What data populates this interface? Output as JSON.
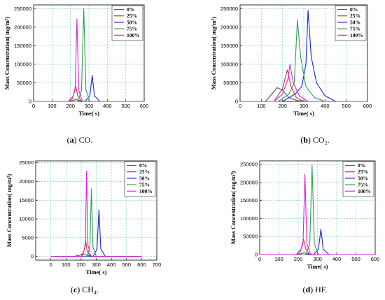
{
  "colors": {
    "0%": "#555555",
    "25%": "#c0392b",
    "50%": "#1f1fd6",
    "75%": "#2f9e4f",
    "100%": "#e01ee0",
    "grid": "#63c5c5"
  },
  "chart_data": [
    {
      "type": "line",
      "caption_label": "(a)",
      "caption_text": "CO.",
      "xlabel": "Time(   s)",
      "ylabel": "Mass Concentration(   mg/m³)",
      "xlim": [
        0,
        600
      ],
      "ylim": [
        0,
        260000
      ],
      "xticks": [
        0,
        100,
        200,
        300,
        400,
        500,
        600
      ],
      "yticks": [
        0,
        50000,
        100000,
        150000,
        200000,
        250000
      ],
      "legend": "top-right",
      "grid": true,
      "series": [
        {
          "name": "0%",
          "x": [
            0,
            180,
            210,
            230,
            250,
            280,
            600
          ],
          "y": [
            0,
            0,
            2000,
            5000,
            2000,
            0,
            0
          ]
        },
        {
          "name": "25%",
          "x": [
            0,
            190,
            215,
            228,
            240,
            260,
            600
          ],
          "y": [
            0,
            0,
            15000,
            42000,
            15000,
            0,
            0
          ]
        },
        {
          "name": "50%",
          "x": [
            0,
            280,
            305,
            318,
            330,
            360,
            600
          ],
          "y": [
            0,
            0,
            15000,
            70000,
            15000,
            0,
            0
          ]
        },
        {
          "name": "75%",
          "x": [
            0,
            240,
            260,
            272,
            284,
            305,
            600
          ],
          "y": [
            0,
            0,
            30000,
            250000,
            30000,
            0,
            0
          ]
        },
        {
          "name": "100%",
          "x": [
            0,
            205,
            225,
            235,
            245,
            265,
            600
          ],
          "y": [
            0,
            0,
            30000,
            222000,
            30000,
            0,
            0
          ]
        }
      ]
    },
    {
      "type": "line",
      "caption_label": "(b)",
      "caption_text": "CO₂.",
      "xlabel": "Time(   s)",
      "ylabel": "Mass Concentration(   mg/m³)",
      "xlim": [
        0,
        600
      ],
      "ylim": [
        0,
        260000
      ],
      "xticks": [
        0,
        100,
        200,
        300,
        400,
        500,
        600
      ],
      "yticks": [
        0,
        50000,
        100000,
        150000,
        200000,
        250000
      ],
      "legend": "top-right",
      "grid": true,
      "series": [
        {
          "name": "0%",
          "x": [
            0,
            120,
            150,
            175,
            200,
            230,
            270,
            320,
            600
          ],
          "y": [
            0,
            0,
            20000,
            37000,
            30000,
            10000,
            2000,
            0,
            0
          ]
        },
        {
          "name": "25%",
          "x": [
            0,
            160,
            200,
            222,
            240,
            265,
            300,
            600
          ],
          "y": [
            0,
            0,
            35000,
            85000,
            40000,
            10000,
            0,
            0
          ]
        },
        {
          "name": "50%",
          "x": [
            0,
            200,
            260,
            290,
            310,
            320,
            335,
            360,
            400,
            450,
            600
          ],
          "y": [
            0,
            0,
            20000,
            40000,
            100000,
            245000,
            120000,
            50000,
            15000,
            0,
            0
          ]
        },
        {
          "name": "75%",
          "x": [
            0,
            180,
            230,
            255,
            270,
            285,
            310,
            350,
            400,
            600
          ],
          "y": [
            0,
            0,
            20000,
            50000,
            220000,
            120000,
            40000,
            10000,
            0,
            0
          ]
        },
        {
          "name": "100%",
          "x": [
            0,
            160,
            200,
            225,
            235,
            250,
            280,
            320,
            600
          ],
          "y": [
            0,
            0,
            20000,
            60000,
            100000,
            50000,
            15000,
            0,
            0
          ]
        }
      ]
    },
    {
      "type": "line",
      "caption_label": "(c)",
      "caption_text": "CH₄.",
      "xlabel": "Time(   s)",
      "ylabel": "Mass Concentration(   mg/m³)",
      "xlim": [
        -100,
        700
      ],
      "ylim": [
        -1000,
        25500
      ],
      "xticks": [
        0,
        100,
        200,
        300,
        400,
        500,
        600,
        700
      ],
      "yticks": [
        0,
        5000,
        10000,
        15000,
        20000,
        25000
      ],
      "legend": "top-right",
      "grid": true,
      "series": [
        {
          "name": "0%",
          "x": [
            0,
            150,
            190,
            210,
            240,
            280,
            600
          ],
          "y": [
            0,
            0,
            300,
            600,
            300,
            0,
            0
          ]
        },
        {
          "name": "25%",
          "x": [
            0,
            200,
            220,
            230,
            240,
            260,
            600
          ],
          "y": [
            0,
            0,
            1500,
            4200,
            1500,
            0,
            0
          ]
        },
        {
          "name": "50%",
          "x": [
            0,
            280,
            305,
            318,
            330,
            360,
            600
          ],
          "y": [
            0,
            0,
            2000,
            12400,
            2000,
            0,
            0
          ]
        },
        {
          "name": "75%",
          "x": [
            0,
            240,
            258,
            268,
            278,
            300,
            600
          ],
          "y": [
            0,
            0,
            2500,
            18000,
            2500,
            0,
            0
          ]
        },
        {
          "name": "100%",
          "x": [
            0,
            210,
            228,
            236,
            245,
            265,
            600
          ],
          "y": [
            0,
            0,
            3000,
            22800,
            3000,
            0,
            0
          ]
        }
      ]
    },
    {
      "type": "line",
      "caption_label": "(d)",
      "caption_text": "HF.",
      "xlabel": "Time(   s)",
      "ylabel": "Mass Concentration(   mg/m³)",
      "xlim": [
        0,
        600
      ],
      "ylim": [
        0,
        260000
      ],
      "xticks": [
        0,
        100,
        200,
        300,
        400,
        500,
        600
      ],
      "yticks": [
        0,
        50000,
        100000,
        150000,
        200000,
        250000
      ],
      "legend": "top-right",
      "grid": true,
      "series": [
        {
          "name": "0%",
          "x": [
            0,
            180,
            210,
            230,
            250,
            280,
            600
          ],
          "y": [
            0,
            0,
            2000,
            5000,
            2000,
            0,
            0
          ]
        },
        {
          "name": "25%",
          "x": [
            0,
            190,
            215,
            228,
            240,
            260,
            600
          ],
          "y": [
            0,
            0,
            15000,
            42000,
            15000,
            0,
            0
          ]
        },
        {
          "name": "50%",
          "x": [
            0,
            280,
            305,
            318,
            330,
            360,
            600
          ],
          "y": [
            0,
            0,
            15000,
            70000,
            15000,
            0,
            0
          ]
        },
        {
          "name": "75%",
          "x": [
            0,
            240,
            260,
            272,
            284,
            305,
            600
          ],
          "y": [
            0,
            0,
            30000,
            248000,
            30000,
            0,
            0
          ]
        },
        {
          "name": "100%",
          "x": [
            0,
            205,
            225,
            235,
            245,
            265,
            600
          ],
          "y": [
            0,
            0,
            30000,
            222000,
            30000,
            0,
            0
          ]
        }
      ]
    }
  ]
}
